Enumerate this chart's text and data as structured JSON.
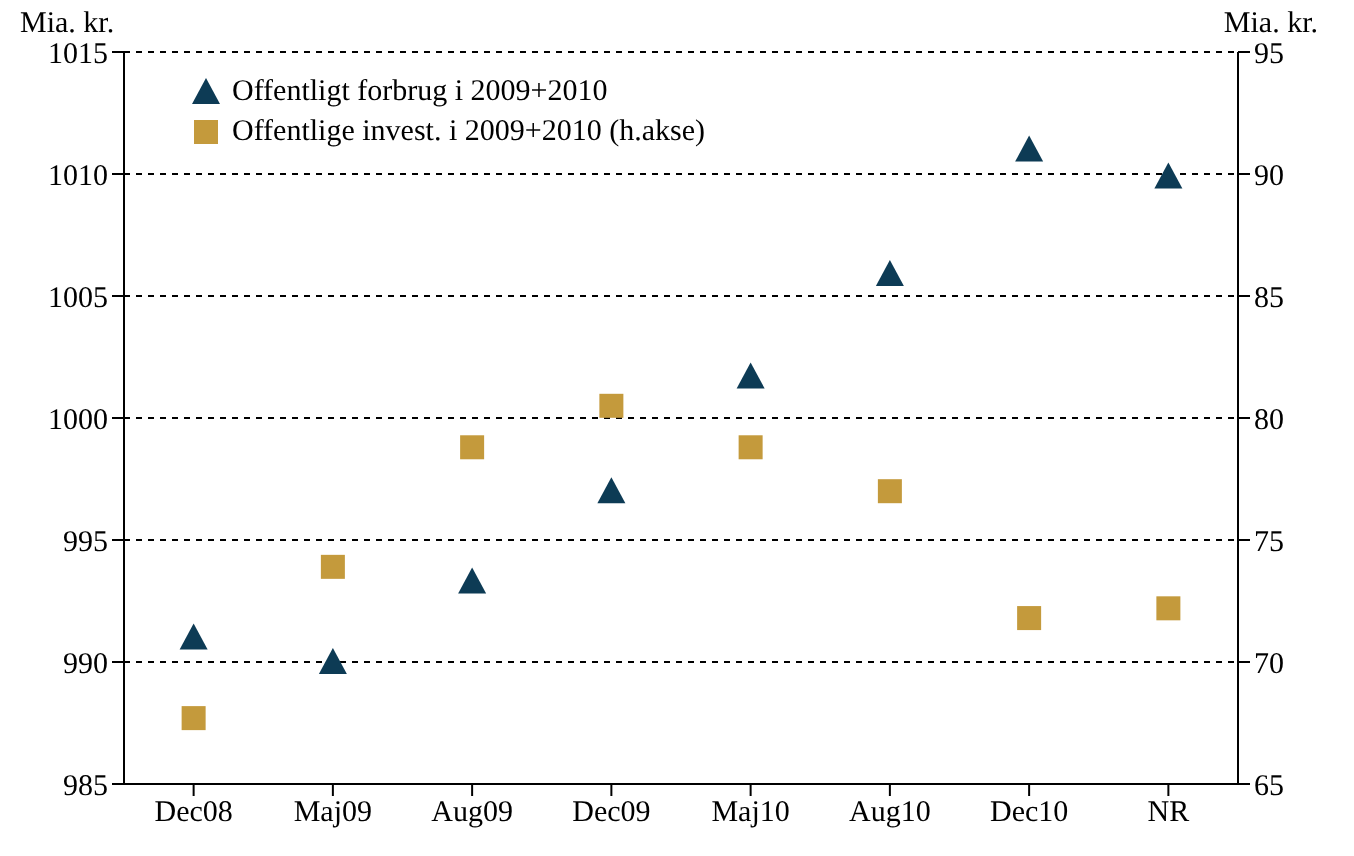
{
  "chart_data": {
    "type": "scatter",
    "ylabel": "Mia. kr.",
    "y2label": "Mia. kr.",
    "categories": [
      "Dec08",
      "Maj09",
      "Aug09",
      "Dec09",
      "Maj10",
      "Aug10",
      "Dec10",
      "NR"
    ],
    "series": [
      {
        "name": "Offentligt forbrug i 2009+2010",
        "color": "#0d3b55",
        "marker": "triangle",
        "values": [
          991.0,
          990.0,
          993.3,
          997.0,
          1001.7,
          1005.9,
          1011.0,
          1009.9
        ]
      },
      {
        "name": "Offentlige invest. i 2009+2010 (h.akse)",
        "color": "#c49a3c",
        "marker": "square",
        "axis": "y2",
        "values": [
          67.7,
          73.9,
          78.8,
          80.5,
          78.8,
          77.0,
          71.8,
          72.2
        ]
      }
    ],
    "ylim": [
      985,
      1015
    ],
    "yticks": [
      985,
      990,
      995,
      1000,
      1005,
      1010,
      1015
    ],
    "y2lim": [
      65,
      95
    ],
    "y2ticks": [
      65,
      70,
      75,
      80,
      85,
      90,
      95
    ],
    "grid": "y",
    "legend": "top left"
  }
}
